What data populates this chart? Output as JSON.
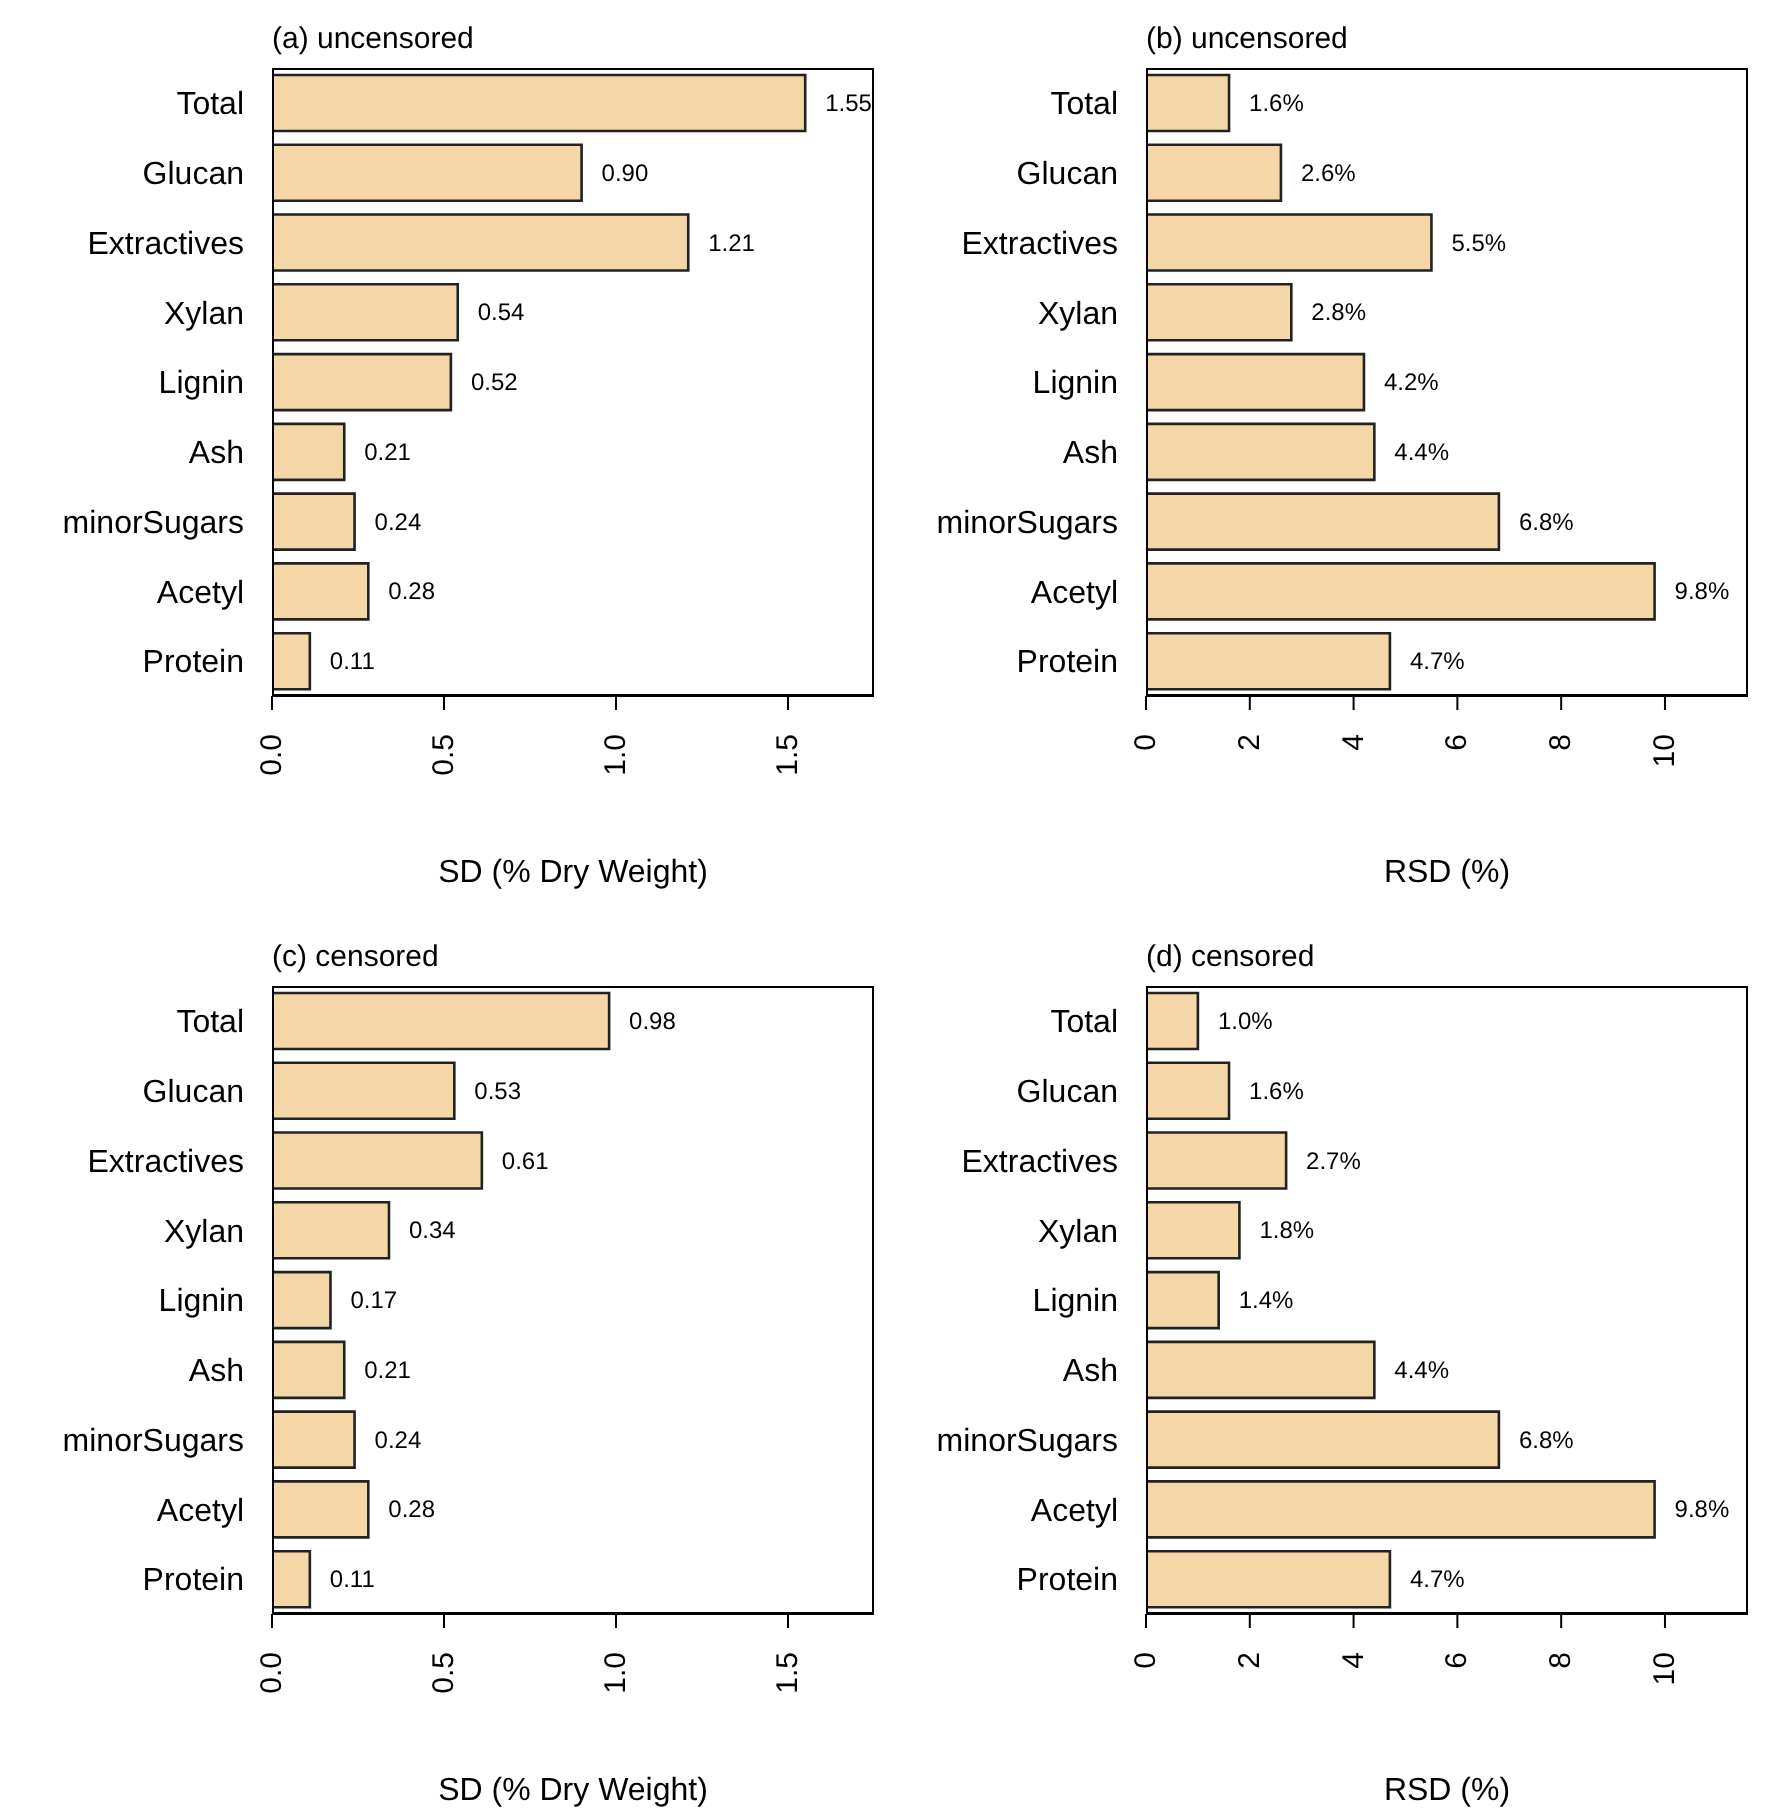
{
  "chart_data": [
    {
      "type": "bar",
      "orientation": "horizontal",
      "title": "(a) uncensored",
      "xlabel": "SD (% Dry Weight)",
      "categories": [
        "Total",
        "Glucan",
        "Extractives",
        "Xylan",
        "Lignin",
        "Ash",
        "minorSugars",
        "Acetyl",
        "Protein"
      ],
      "values": [
        1.55,
        0.9,
        1.21,
        0.54,
        0.52,
        0.21,
        0.24,
        0.28,
        0.11
      ],
      "value_labels": [
        "1.55",
        "0.90",
        "1.21",
        "0.54",
        "0.52",
        "0.21",
        "0.24",
        "0.28",
        "0.11"
      ],
      "color": "#f5d7a7",
      "xlim": [
        0,
        1.75
      ],
      "xticks": [
        {
          "value": 0,
          "label": "0.0"
        },
        {
          "value": 0.5,
          "label": "0.5"
        },
        {
          "value": 1,
          "label": "1.0"
        },
        {
          "value": 1.5,
          "label": "1.5"
        }
      ],
      "grid": false
    },
    {
      "type": "bar",
      "orientation": "horizontal",
      "title": "(b) uncensored",
      "xlabel": "RSD (%)",
      "categories": [
        "Total",
        "Glucan",
        "Extractives",
        "Xylan",
        "Lignin",
        "Ash",
        "minorSugars",
        "Acetyl",
        "Protein"
      ],
      "values": [
        1.6,
        2.6,
        5.5,
        2.8,
        4.2,
        4.4,
        6.8,
        9.8,
        4.7
      ],
      "value_labels": [
        "1.6%",
        "2.6%",
        "5.5%",
        "2.8%",
        "4.2%",
        "4.4%",
        "6.8%",
        "9.8%",
        "4.7%"
      ],
      "color": "#f5d7a7",
      "xlim": [
        0,
        11.6
      ],
      "xticks": [
        0,
        2,
        4,
        6,
        8,
        10
      ],
      "grid": false
    },
    {
      "type": "bar",
      "orientation": "horizontal",
      "title": "(c) censored",
      "xlabel": "SD (% Dry Weight)",
      "categories": [
        "Total",
        "Glucan",
        "Extractives",
        "Xylan",
        "Lignin",
        "Ash",
        "minorSugars",
        "Acetyl",
        "Protein"
      ],
      "values": [
        0.98,
        0.53,
        0.61,
        0.34,
        0.17,
        0.21,
        0.24,
        0.28,
        0.11
      ],
      "value_labels": [
        "0.98",
        "0.53",
        "0.61",
        "0.34",
        "0.17",
        "0.21",
        "0.24",
        "0.28",
        "0.11"
      ],
      "color": "#f5d7a7",
      "xlim": [
        0,
        1.75
      ],
      "xticks": [
        {
          "value": 0,
          "label": "0.0"
        },
        {
          "value": 0.5,
          "label": "0.5"
        },
        {
          "value": 1,
          "label": "1.0"
        },
        {
          "value": 1.5,
          "label": "1.5"
        }
      ],
      "grid": false
    },
    {
      "type": "bar",
      "orientation": "horizontal",
      "title": "(d) censored",
      "xlabel": "RSD (%)",
      "categories": [
        "Total",
        "Glucan",
        "Extractives",
        "Xylan",
        "Lignin",
        "Ash",
        "minorSugars",
        "Acetyl",
        "Protein"
      ],
      "values": [
        1.0,
        1.6,
        2.7,
        1.8,
        1.4,
        4.4,
        6.8,
        9.8,
        4.7
      ],
      "value_labels": [
        "1.0%",
        "1.6%",
        "2.7%",
        "1.8%",
        "1.4%",
        "4.4%",
        "6.8%",
        "9.8%",
        "4.7%"
      ],
      "color": "#f5d7a7",
      "xlim": [
        0,
        11.6
      ],
      "xticks": [
        0,
        2,
        4,
        6,
        8,
        10
      ],
      "grid": false
    }
  ]
}
